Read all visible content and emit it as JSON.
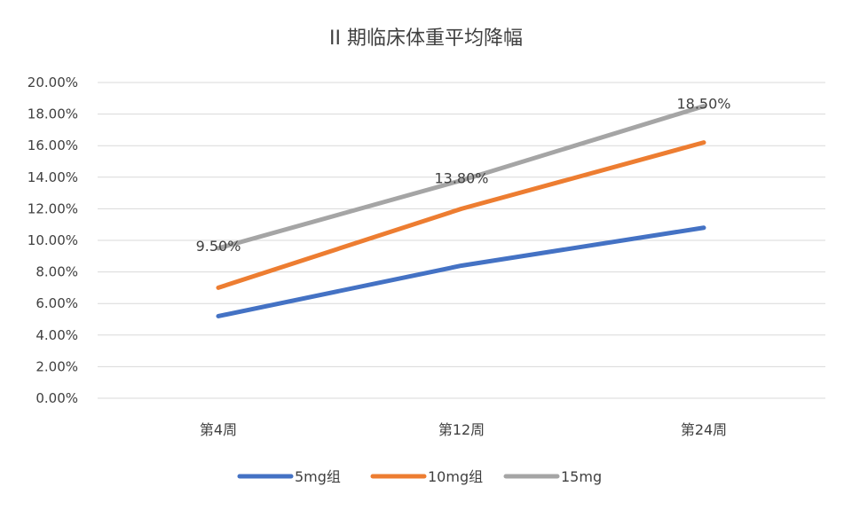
{
  "chart_data": {
    "type": "line",
    "title": "II 期临床体重平均降幅",
    "categories": [
      "第4周",
      "第12周",
      "第24周"
    ],
    "ylim": [
      0,
      20
    ],
    "y_step": 2,
    "y_tick_labels": [
      "0.00%",
      "2.00%",
      "4.00%",
      "6.00%",
      "8.00%",
      "10.00%",
      "12.00%",
      "14.00%",
      "16.00%",
      "18.00%",
      "20.00%"
    ],
    "grid": true,
    "legend_position": "bottom",
    "series": [
      {
        "name": "5mg组",
        "color": "#4472C4",
        "values": [
          5.2,
          8.4,
          10.8
        ]
      },
      {
        "name": "10mg组",
        "color": "#ED7D31",
        "values": [
          7.0,
          12.0,
          16.2
        ]
      },
      {
        "name": "15mg",
        "color": "#A5A5A5",
        "values": [
          9.5,
          13.8,
          18.5
        ],
        "data_labels": [
          "9.50%",
          "13.80%",
          "18.50%"
        ]
      }
    ]
  }
}
